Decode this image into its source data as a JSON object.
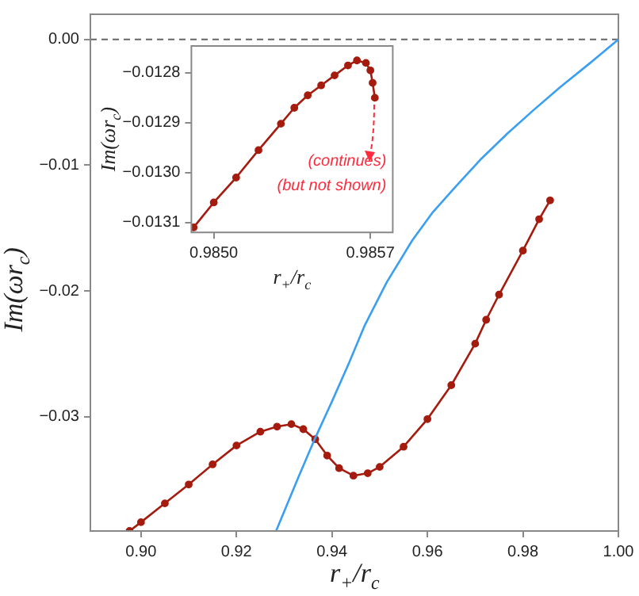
{
  "chart_data": [
    {
      "type": "line",
      "xlabel": "r$_{+}$/r$_{c}$",
      "ylabel": "Im(ωr$_{c}$)",
      "xlim": [
        0.8894,
        1.0
      ],
      "ylim": [
        -0.0391,
        0.002
      ],
      "xticks": [
        {
          "value": 0.9,
          "label": "0.90"
        },
        {
          "value": 0.92,
          "label": "0.92"
        },
        {
          "value": 0.94,
          "label": "0.94"
        },
        {
          "value": 0.96,
          "label": "0.96"
        },
        {
          "value": 0.98,
          "label": "0.98"
        },
        {
          "value": 1.0,
          "label": "1.00"
        }
      ],
      "yticks": [
        {
          "value": 0,
          "label": "0.00"
        },
        {
          "value": -0.01,
          "label": "−0.01"
        },
        {
          "value": -0.02,
          "label": "−0.02"
        },
        {
          "value": -0.03,
          "label": "−0.03"
        }
      ],
      "ref_lines": [
        {
          "axis": "y",
          "value": 0,
          "color": "#666666",
          "line_style": "dashed"
        }
      ],
      "series": [
        {
          "color": "#3a9ff0",
          "marker": "none",
          "x": [
            0.9283,
            0.933,
            0.9365,
            0.94,
            0.9435,
            0.9468,
            0.9515,
            0.9568,
            0.961,
            0.9657,
            0.971,
            0.9767,
            0.982,
            0.9878,
            0.994,
            1.0
          ],
          "values": [
            -0.0391,
            -0.0348,
            -0.0317,
            -0.0288,
            -0.0258,
            -0.0228,
            -0.0193,
            -0.016,
            -0.0138,
            -0.0118,
            -0.0096,
            -0.0075,
            -0.0057,
            -0.0038,
            -0.0019,
            0.0
          ]
        },
        {
          "color": "#a51c0f",
          "marker": "circle",
          "x": [
            0.8976,
            0.9,
            0.905,
            0.91,
            0.915,
            0.92,
            0.925,
            0.9285,
            0.9315,
            0.934,
            0.9365,
            0.939,
            0.9415,
            0.9445,
            0.9475,
            0.95,
            0.955,
            0.96,
            0.965,
            0.97,
            0.9723,
            0.975,
            0.98,
            0.9834,
            0.9857
          ],
          "values": [
            -0.0391,
            -0.0384,
            -0.0369,
            -0.0354,
            -0.0338,
            -0.0323,
            -0.0312,
            -0.0308,
            -0.0306,
            -0.031,
            -0.0318,
            -0.0331,
            -0.0341,
            -0.0347,
            -0.0345,
            -0.034,
            -0.0324,
            -0.0302,
            -0.0275,
            -0.0242,
            -0.0223,
            -0.0203,
            -0.0168,
            -0.0143,
            -0.0128
          ]
        }
      ]
    },
    {
      "type": "line",
      "xlabel": "r$_{+}$/r$_{c}$",
      "ylabel": "Im(ωr$_{c}$)",
      "xlim": [
        0.9849,
        0.9858
      ],
      "ylim": [
        -0.01312,
        -0.012746
      ],
      "xticks": [
        {
          "value": 0.985,
          "label": "0.9850"
        },
        {
          "value": 0.9857,
          "label": "0.9857"
        }
      ],
      "yticks": [
        {
          "value": -0.0128,
          "label": "−0.0128"
        },
        {
          "value": -0.0129,
          "label": "−0.0129"
        },
        {
          "value": -0.013,
          "label": "−0.0130"
        },
        {
          "value": -0.0131,
          "label": "−0.0131"
        }
      ],
      "annotations": [
        "(continues)",
        "(but not shown)"
      ],
      "series": [
        {
          "color": "#a51c0f",
          "marker": "circle",
          "x": [
            0.98491,
            0.985,
            0.9851,
            0.9852,
            0.9853,
            0.98536,
            0.98542,
            0.98548,
            0.98554,
            0.9856,
            0.98564,
            0.98568,
            0.9857,
            0.98571,
            0.98572
          ],
          "values": [
            -0.01311,
            -0.01306,
            -0.01301,
            -0.012955,
            -0.012902,
            -0.01287,
            -0.012845,
            -0.012825,
            -0.012805,
            -0.012785,
            -0.012775,
            -0.01278,
            -0.012795,
            -0.01282,
            -0.01285
          ]
        }
      ]
    }
  ]
}
